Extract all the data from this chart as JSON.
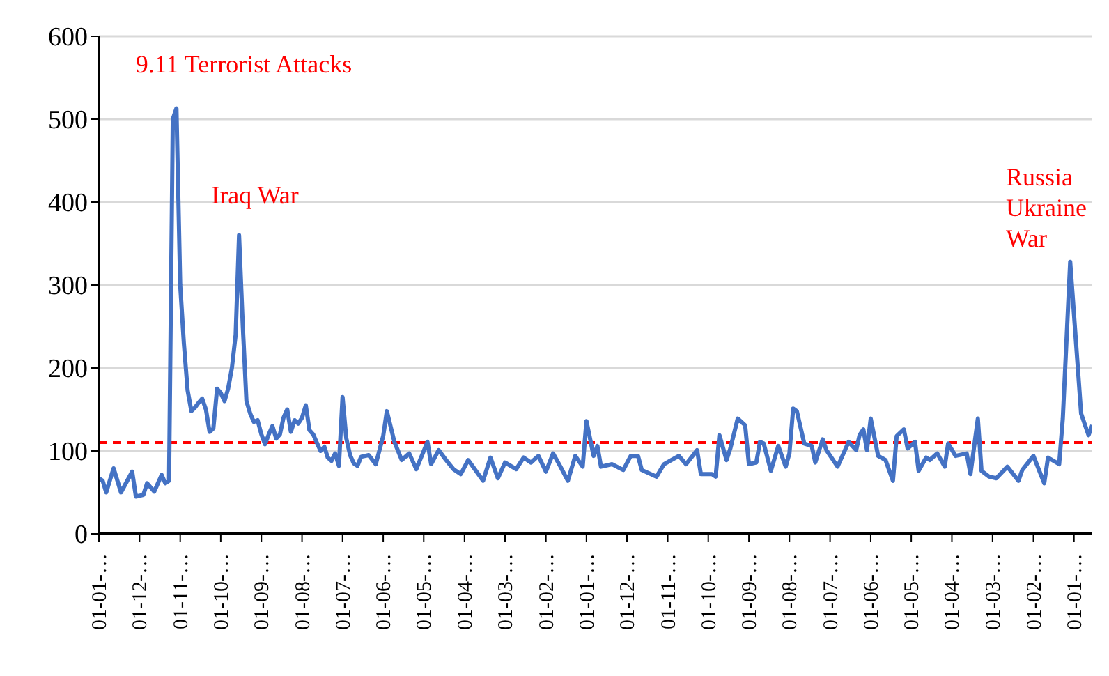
{
  "chart_data": {
    "type": "line",
    "x": [
      "2000-01",
      "2000-02",
      "2000-03",
      "2000-05",
      "2000-07",
      "2000-10",
      "2000-11",
      "2001-01",
      "2001-02",
      "2001-04",
      "2001-06",
      "2001-07",
      "2001-08",
      "2001-09",
      "2001-10",
      "2001-11",
      "2001-12",
      "2002-01",
      "2002-02",
      "2002-03",
      "2002-04",
      "2002-05",
      "2002-06",
      "2002-07",
      "2002-08",
      "2002-09",
      "2002-10",
      "2002-11",
      "2002-12",
      "2003-01",
      "2003-02",
      "2003-03",
      "2003-04",
      "2003-05",
      "2003-06",
      "2003-07",
      "2003-08",
      "2003-09",
      "2003-10",
      "2003-11",
      "2003-12",
      "2004-01",
      "2004-02",
      "2004-03",
      "2004-04",
      "2004-05",
      "2004-06",
      "2004-07",
      "2004-08",
      "2004-09",
      "2004-10",
      "2004-11",
      "2004-12",
      "2005-01",
      "2005-02",
      "2005-03",
      "2005-04",
      "2005-05",
      "2005-06",
      "2005-07",
      "2005-08",
      "2005-09",
      "2005-10",
      "2005-11",
      "2005-12",
      "2006-02",
      "2006-04",
      "2006-06",
      "2006-07",
      "2006-09",
      "2006-11",
      "2007-01",
      "2007-03",
      "2007-06",
      "2007-07",
      "2007-09",
      "2007-11",
      "2008-01",
      "2008-03",
      "2008-05",
      "2008-09",
      "2008-11",
      "2009-01",
      "2009-03",
      "2009-06",
      "2009-08",
      "2009-10",
      "2009-12",
      "2010-02",
      "2010-04",
      "2010-06",
      "2010-08",
      "2010-10",
      "2010-12",
      "2011-01",
      "2011-03",
      "2011-04",
      "2011-05",
      "2011-08",
      "2011-11",
      "2012-01",
      "2012-03",
      "2012-04",
      "2012-08",
      "2012-10",
      "2012-12",
      "2013-02",
      "2013-04",
      "2013-07",
      "2013-08",
      "2013-11",
      "2013-12",
      "2014-01",
      "2014-03",
      "2014-04",
      "2014-06",
      "2014-08",
      "2014-09",
      "2014-11",
      "2014-12",
      "2015-01",
      "2015-03",
      "2015-05",
      "2015-07",
      "2015-08",
      "2015-09",
      "2015-10",
      "2015-12",
      "2016-02",
      "2016-03",
      "2016-05",
      "2016-06",
      "2016-09",
      "2016-12",
      "2017-02",
      "2017-03",
      "2017-04",
      "2017-05",
      "2017-06",
      "2017-08",
      "2017-10",
      "2017-12",
      "2018-01",
      "2018-03",
      "2018-04",
      "2018-06",
      "2018-07",
      "2018-09",
      "2018-10",
      "2018-12",
      "2019-02",
      "2019-03",
      "2019-05",
      "2019-08",
      "2019-09",
      "2019-11",
      "2019-12",
      "2020-02",
      "2020-04",
      "2020-07",
      "2020-10",
      "2020-11",
      "2021-02",
      "2021-05",
      "2021-06",
      "2021-09",
      "2021-10",
      "2021-12",
      "2022-03",
      "2022-05",
      "2022-06"
    ],
    "series": [
      {
        "color": "#4472c4",
        "values": [
          67,
          64,
          50,
          79,
          50,
          75,
          45,
          47,
          61,
          51,
          71,
          61,
          64,
          500,
          513,
          300,
          230,
          173,
          148,
          152,
          158,
          163,
          150,
          123,
          127,
          175,
          170,
          160,
          175,
          200,
          240,
          360,
          250,
          160,
          145,
          135,
          137,
          120,
          108,
          120,
          130,
          115,
          120,
          140,
          150,
          123,
          137,
          133,
          140,
          155,
          125,
          120,
          110,
          100,
          105,
          92,
          88,
          97,
          82,
          165,
          115,
          95,
          85,
          82,
          93,
          95,
          84,
          118,
          148,
          111,
          89,
          97,
          78,
          111,
          84,
          101,
          89,
          78,
          72,
          89,
          64,
          92,
          67,
          86,
          78,
          92,
          86,
          94,
          75,
          97,
          81,
          64,
          94,
          81,
          136,
          94,
          106,
          81,
          84,
          77,
          94,
          94,
          77,
          69,
          84,
          89,
          94,
          84,
          101,
          72,
          72,
          69,
          119,
          89,
          103,
          139,
          131,
          84,
          86,
          111,
          109,
          76,
          106,
          81,
          97,
          151,
          148,
          109,
          106,
          86,
          114,
          101,
          81,
          111,
          101,
          119,
          126,
          101,
          139,
          94,
          89,
          64,
          118,
          126,
          103,
          111,
          76,
          92,
          89,
          97,
          81,
          109,
          94,
          97,
          72,
          139,
          76,
          69,
          67,
          81,
          64,
          77,
          94,
          61,
          92,
          84,
          139,
          328,
          145,
          119,
          131
        ]
      }
    ],
    "xlim": [
      "2000-01",
      "2022-06"
    ],
    "xticks": [
      {
        "value": "2000-01",
        "label": "01-01-…"
      },
      {
        "value": "2000-12",
        "label": "01-12-…"
      },
      {
        "value": "2001-11",
        "label": "01-11-…"
      },
      {
        "value": "2002-10",
        "label": "01-10-…"
      },
      {
        "value": "2003-09",
        "label": "01-09-…"
      },
      {
        "value": "2004-08",
        "label": "01-08-…"
      },
      {
        "value": "2005-07",
        "label": "01-07-…"
      },
      {
        "value": "2006-06",
        "label": "01-06-…"
      },
      {
        "value": "2007-05",
        "label": "01-05-…"
      },
      {
        "value": "2008-04",
        "label": "01-04-…"
      },
      {
        "value": "2009-03",
        "label": "01-03-…"
      },
      {
        "value": "2010-02",
        "label": "01-02-…"
      },
      {
        "value": "2011-01",
        "label": "01-01-…"
      },
      {
        "value": "2011-12",
        "label": "01-12-…"
      },
      {
        "value": "2012-11",
        "label": "01-11-…"
      },
      {
        "value": "2013-10",
        "label": "01-10-…"
      },
      {
        "value": "2014-09",
        "label": "01-09-…"
      },
      {
        "value": "2015-08",
        "label": "01-08-…"
      },
      {
        "value": "2016-07",
        "label": "01-07-…"
      },
      {
        "value": "2017-06",
        "label": "01-06-…"
      },
      {
        "value": "2018-05",
        "label": "01-05-…"
      },
      {
        "value": "2019-04",
        "label": "01-04-…"
      },
      {
        "value": "2020-03",
        "label": "01-03-…"
      },
      {
        "value": "2021-02",
        "label": "01-02-…"
      },
      {
        "value": "2022-01",
        "label": "01-01-…"
      }
    ],
    "ylim": [
      0,
      600
    ],
    "yticks": [
      0,
      100,
      200,
      300,
      400,
      500,
      600
    ],
    "grid": "y",
    "marker": "none",
    "line_style": "solid",
    "legend": false,
    "ref_lines": [
      {
        "axis": "y",
        "value": 110,
        "color": "#ff0000",
        "line_style": "dashed"
      }
    ],
    "annotations": [
      "9.11 Terrorist Attacks",
      "Iraq War",
      "Russia Ukraine War"
    ]
  }
}
